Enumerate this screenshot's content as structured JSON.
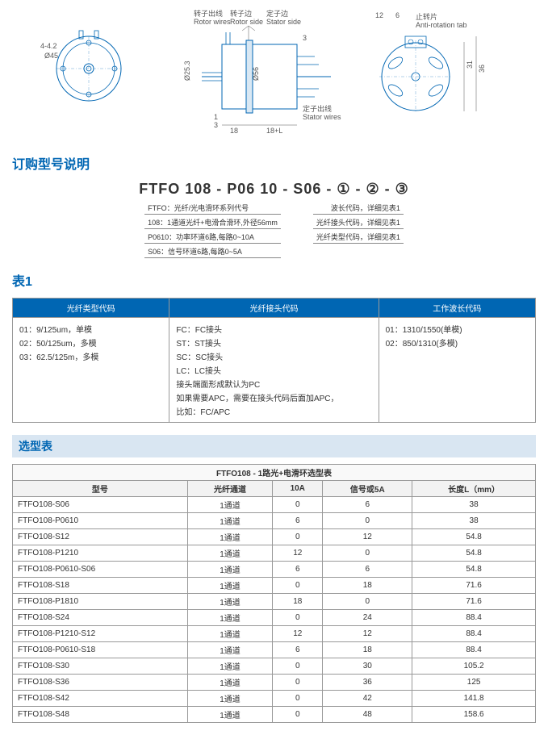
{
  "diagram": {
    "front": {
      "dim1": "4-4.2",
      "dim2": "Ø45"
    },
    "side": {
      "rotor_wires_zh": "转子出线",
      "rotor_wires_en": "Rotor wires",
      "rotor_side_zh": "转子边",
      "rotor_side_en": "Rotor side",
      "stator_side_zh": "定子边",
      "stator_side_en": "Stator side",
      "stator_wires_zh": "定子出线",
      "stator_wires_en": "Stator wires",
      "d25": "Ø25.3",
      "d56": "Ø56",
      "h1": "1",
      "h3": "3",
      "w18": "18",
      "w18l": "18+L",
      "g3": "3"
    },
    "rear": {
      "w12": "12",
      "w6": "6",
      "tab_zh": "止转片",
      "tab_en": "Anti-rotation tab",
      "h31": "31",
      "h36": "36"
    }
  },
  "order": {
    "title": "订购型号说明",
    "code": "FTFO 108 - P06 10 - S06 - ① - ② - ③",
    "left": [
      "FTFO：光纤/光电滑环系列代号",
      "108：1通道光纤+电滑合滑环,外径56mm",
      "P0610：功率环道6路,每路0~10A",
      "S06：信号环道6路,每路0~5A"
    ],
    "right": [
      "波长代码，详细见表1",
      "光纤接头代码，详细见表1",
      "光纤类型代码，详细见表1"
    ]
  },
  "table1": {
    "title": "表1",
    "headers": [
      "光纤类型代码",
      "光纤接头代码",
      "工作波长代码"
    ],
    "col1": [
      "01：9/125um，单模",
      "02：50/125um，多模",
      "03：62.5/125m，多模"
    ],
    "col2": [
      "FC：FC接头",
      "ST：ST接头",
      "SC：SC接头",
      "LC：LC接头",
      "接头端面形成默认为PC",
      "如果需要APC，需要在接头代码后面加APC，",
      "比如：FC/APC"
    ],
    "col3": [
      "01：1310/1550(单模)",
      "02：850/1310(多模)"
    ]
  },
  "selection": {
    "title": "选型表",
    "caption": "FTFO108 - 1路光+电滑环选型表",
    "headers": [
      "型号",
      "光纤通道",
      "10A",
      "信号或5A",
      "长度L（mm）"
    ],
    "rows": [
      [
        "FTFO108-S06",
        "1通道",
        "0",
        "6",
        "38"
      ],
      [
        "FTFO108-P0610",
        "1通道",
        "6",
        "0",
        "38"
      ],
      [
        "FTFO108-S12",
        "1通道",
        "0",
        "12",
        "54.8"
      ],
      [
        "FTFO108-P1210",
        "1通道",
        "12",
        "0",
        "54.8"
      ],
      [
        "FTFO108-P0610-S06",
        "1通道",
        "6",
        "6",
        "54.8"
      ],
      [
        "FTFO108-S18",
        "1通道",
        "0",
        "18",
        "71.6"
      ],
      [
        "FTFO108-P1810",
        "1通道",
        "18",
        "0",
        "71.6"
      ],
      [
        "FTFO108-S24",
        "1通道",
        "0",
        "24",
        "88.4"
      ],
      [
        "FTFO108-P1210-S12",
        "1通道",
        "12",
        "12",
        "88.4"
      ],
      [
        "FTFO108-P0610-S18",
        "1通道",
        "6",
        "18",
        "88.4"
      ],
      [
        "FTFO108-S30",
        "1通道",
        "0",
        "30",
        "105.2"
      ],
      [
        "FTFO108-S36",
        "1通道",
        "0",
        "36",
        "125"
      ],
      [
        "FTFO108-S42",
        "1通道",
        "0",
        "42",
        "141.8"
      ],
      [
        "FTFO108-S48",
        "1通道",
        "0",
        "48",
        "158.6"
      ]
    ]
  }
}
